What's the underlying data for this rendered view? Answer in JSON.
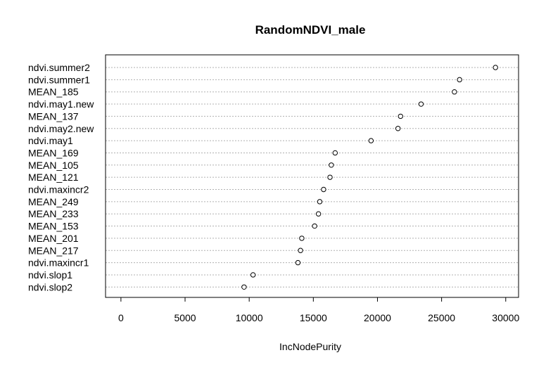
{
  "chart_data": {
    "type": "scatter",
    "title": "RandomNDVI_male",
    "xlabel": "IncNodePurity",
    "ylabel": "",
    "xlim": [
      -1200,
      31000
    ],
    "xticks": [
      0,
      5000,
      10000,
      15000,
      20000,
      25000,
      30000
    ],
    "grid": true,
    "categories": [
      "ndvi.summer2",
      "ndvi.summer1",
      "MEAN_185",
      "ndvi.may1.new",
      "MEAN_137",
      "ndvi.may2.new",
      "ndvi.may1",
      "MEAN_169",
      "MEAN_105",
      "MEAN_121",
      "ndvi.maxincr2",
      "MEAN_249",
      "MEAN_233",
      "MEAN_153",
      "MEAN_201",
      "MEAN_217",
      "ndvi.maxincr1",
      "ndvi.slop1",
      "ndvi.slop2"
    ],
    "values": [
      29200,
      26400,
      26000,
      23400,
      21800,
      21600,
      19500,
      16700,
      16400,
      16300,
      15800,
      15500,
      15400,
      15100,
      14100,
      14000,
      13800,
      10300,
      9600
    ]
  }
}
